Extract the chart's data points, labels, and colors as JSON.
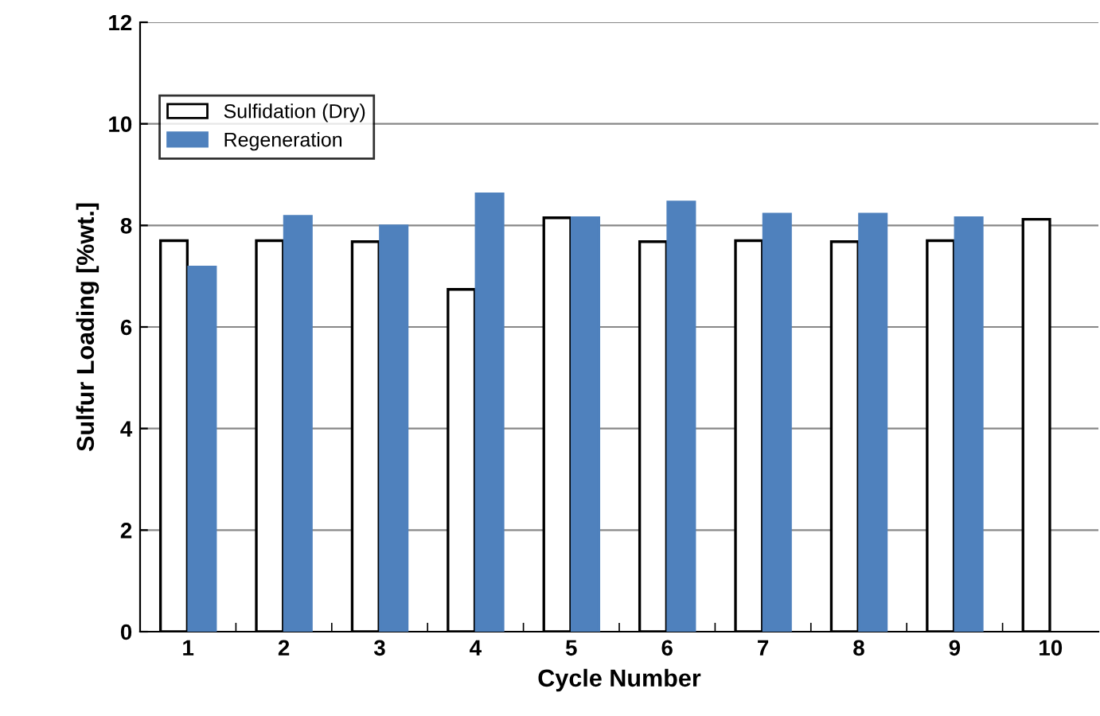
{
  "chart_data": {
    "type": "bar",
    "xlabel": "Cycle Number",
    "ylabel": "Sulfur Loading [%wt.]",
    "categories": [
      "1",
      "2",
      "3",
      "4",
      "5",
      "6",
      "7",
      "8",
      "9",
      "10"
    ],
    "series": [
      {
        "name": "Sulfidation (Dry)",
        "color": "#ffffff",
        "values": [
          7.7,
          7.7,
          7.68,
          6.74,
          8.15,
          7.68,
          7.7,
          7.68,
          7.7,
          8.12
        ]
      },
      {
        "name": "Regeneration",
        "color": "#4f81bd",
        "values": [
          7.18,
          8.18,
          7.99,
          8.62,
          8.15,
          8.46,
          8.22,
          8.22,
          8.15,
          null
        ]
      }
    ],
    "ylim": [
      0,
      12
    ],
    "yticks": [
      0,
      2,
      4,
      6,
      8,
      10,
      12
    ],
    "grid": "y",
    "legend": "top left"
  }
}
